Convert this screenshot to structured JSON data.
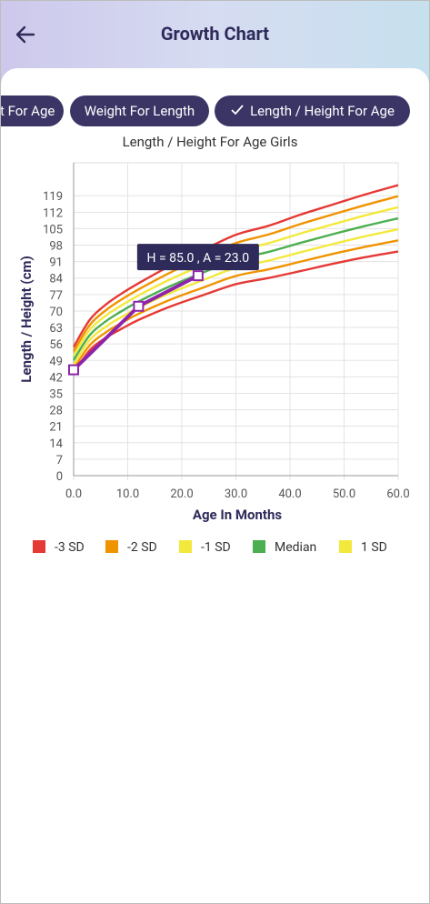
{
  "header": {
    "title": "Growth Chart"
  },
  "tabs": [
    {
      "label": "Weight For Age"
    },
    {
      "label": "Weight For Length"
    },
    {
      "label": "Length / Height For Age",
      "selected": true
    }
  ],
  "chart_data": {
    "type": "line",
    "title": "Length / Height For Age Girls",
    "x_label": "Age In Months",
    "y_label": "Length / Height (cm)",
    "x": [
      0,
      3,
      6,
      9,
      12,
      18,
      24,
      30,
      36,
      42,
      48,
      54,
      60
    ],
    "series": [
      {
        "name": "-3 SD",
        "color": "#e53935",
        "values": [
          43.5,
          53.4,
          58.7,
          62.6,
          66.2,
          72.0,
          76.8,
          81.4,
          84.0,
          87.0,
          90.1,
          92.9,
          95.3
        ]
      },
      {
        "name": "-2 SD",
        "color": "#f09300",
        "values": [
          45.4,
          55.5,
          61.0,
          65.1,
          68.8,
          74.9,
          80.0,
          84.9,
          87.7,
          91.0,
          94.3,
          97.3,
          100.0
        ]
      },
      {
        "name": "-1 SD",
        "color": "#f3e93c",
        "values": [
          47.2,
          57.7,
          63.4,
          67.6,
          71.4,
          77.8,
          83.2,
          88.4,
          91.4,
          95.0,
          98.5,
          101.8,
          104.7
        ]
      },
      {
        "name": "Median",
        "color": "#4caf50",
        "values": [
          49.1,
          59.8,
          65.7,
          70.1,
          74.0,
          80.7,
          86.4,
          91.9,
          95.1,
          99.0,
          102.7,
          106.2,
          109.4
        ]
      },
      {
        "name": "1 SD",
        "color": "#f3e93c",
        "values": [
          51.0,
          62.0,
          68.1,
          72.6,
          76.6,
          83.6,
          89.6,
          95.4,
          98.8,
          103.0,
          106.9,
          110.7,
          114.1
        ]
      },
      {
        "color": "#f09300",
        "values": [
          52.8,
          64.1,
          70.4,
          75.1,
          79.2,
          86.5,
          92.8,
          98.9,
          102.5,
          107.0,
          111.1,
          115.1,
          118.8
        ]
      },
      {
        "color": "#e53935",
        "values": [
          54.7,
          66.3,
          72.8,
          77.6,
          81.8,
          89.4,
          96.0,
          102.4,
          106.2,
          111.0,
          115.3,
          119.6,
          123.5
        ]
      }
    ],
    "measurements": {
      "color": "#8e24aa",
      "x": [
        0,
        12,
        23
      ],
      "values": [
        45,
        72,
        85
      ]
    },
    "tooltip": "H = 85.0 , A = 23.0",
    "xlim": [
      0,
      60
    ],
    "xticks": [
      {
        "value": 0,
        "label": "0.0"
      },
      {
        "value": 10,
        "label": "10.0"
      },
      {
        "value": 20,
        "label": "20.0"
      },
      {
        "value": 30,
        "label": "30.0"
      },
      {
        "value": 40,
        "label": "40.0"
      },
      {
        "value": 50,
        "label": "50.0"
      },
      {
        "value": 60,
        "label": "60.0"
      }
    ],
    "ylim": [
      0,
      133
    ],
    "yticks": [
      0,
      7,
      14,
      21,
      28,
      35,
      42,
      49,
      56,
      63,
      70,
      77,
      84,
      91,
      98,
      105,
      112,
      119
    ],
    "grid": true,
    "legend": "bottom"
  }
}
